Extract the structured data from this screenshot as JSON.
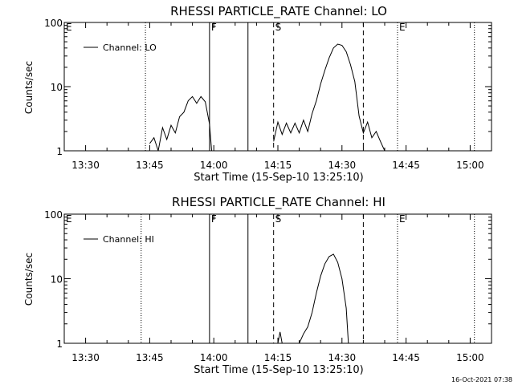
{
  "footer_timestamp": "16-Oct-2021 07:38",
  "chart_data": [
    {
      "type": "line",
      "title": "RHESSI PARTICLE_RATE Channel: LO",
      "xlabel": "Start Time (15-Sep-10 13:25:10)",
      "ylabel": "Counts/sec",
      "x_range": [
        "13:25",
        "15:05"
      ],
      "y_scale": "log",
      "y_range": [
        1,
        100
      ],
      "x_tick_labels": [
        "13:30",
        "13:45",
        "14:00",
        "14:15",
        "14:30",
        "14:45",
        "15:00"
      ],
      "y_tick_labels": [
        "1",
        "10",
        "100"
      ],
      "legend": {
        "label": "Channel: LO",
        "placement": "top-left"
      },
      "markers": [
        {
          "label": "E",
          "time": "13:25",
          "style": "dotted"
        },
        {
          "label": "",
          "time": "13:44",
          "style": "dotted"
        },
        {
          "label": "F",
          "time": "13:59",
          "style": "solid"
        },
        {
          "label": "",
          "time": "14:08",
          "style": "solid"
        },
        {
          "label": "S",
          "time": "14:14",
          "style": "dashed"
        },
        {
          "label": "",
          "time": "14:35",
          "style": "dashed"
        },
        {
          "label": "E",
          "time": "14:43",
          "style": "dotted"
        },
        {
          "label": "",
          "time": "15:01",
          "style": "dotted"
        }
      ],
      "series": [
        {
          "segments": [
            [
              [
                "13:45",
                1.3
              ],
              [
                "13:46",
                1.6
              ],
              [
                "13:47",
                1.0
              ],
              [
                "13:48",
                2.3
              ],
              [
                "13:49",
                1.5
              ],
              [
                "13:50",
                2.5
              ],
              [
                "13:51",
                1.9
              ],
              [
                "13:52",
                3.4
              ],
              [
                "13:53",
                4.0
              ],
              [
                "13:54",
                6.0
              ],
              [
                "13:55",
                7.0
              ],
              [
                "13:56",
                5.5
              ],
              [
                "13:57",
                7.0
              ],
              [
                "13:58",
                5.8
              ],
              [
                "13:59",
                2.6
              ],
              [
                "13:59.5",
                1.0
              ]
            ],
            [
              [
                "14:14",
                1.4
              ],
              [
                "14:15",
                2.8
              ],
              [
                "14:16",
                1.8
              ],
              [
                "14:17",
                2.7
              ],
              [
                "14:18",
                1.9
              ],
              [
                "14:19",
                2.7
              ],
              [
                "14:20",
                1.9
              ],
              [
                "14:21",
                3.0
              ],
              [
                "14:22",
                2.0
              ],
              [
                "14:23",
                3.8
              ],
              [
                "14:24",
                6.0
              ],
              [
                "14:25",
                11
              ],
              [
                "14:26",
                18
              ],
              [
                "14:27",
                28
              ],
              [
                "14:28",
                40
              ],
              [
                "14:29",
                46
              ],
              [
                "14:30",
                44
              ],
              [
                "14:31",
                35
              ],
              [
                "14:32",
                22
              ],
              [
                "14:33",
                12
              ],
              [
                "14:34",
                3.5
              ],
              [
                "14:35",
                1.9
              ],
              [
                "14:36",
                2.8
              ],
              [
                "14:37",
                1.6
              ],
              [
                "14:38",
                2.0
              ],
              [
                "14:39",
                1.4
              ],
              [
                "14:40",
                1.0
              ]
            ]
          ]
        }
      ]
    },
    {
      "type": "line",
      "title": "RHESSI PARTICLE_RATE Channel: HI",
      "xlabel": "Start Time (15-Sep-10 13:25:10)",
      "ylabel": "Counts/sec",
      "x_range": [
        "13:25",
        "15:05"
      ],
      "y_scale": "log",
      "y_range": [
        1,
        100
      ],
      "x_tick_labels": [
        "13:30",
        "13:45",
        "14:00",
        "14:15",
        "14:30",
        "14:45",
        "15:00"
      ],
      "y_tick_labels": [
        "1",
        "10",
        "100"
      ],
      "legend": {
        "label": "Channel: HI",
        "placement": "top-left"
      },
      "markers": [
        {
          "label": "E",
          "time": "13:25",
          "style": "dotted"
        },
        {
          "label": "",
          "time": "13:43",
          "style": "dotted"
        },
        {
          "label": "F",
          "time": "13:59",
          "style": "solid"
        },
        {
          "label": "",
          "time": "14:08",
          "style": "solid"
        },
        {
          "label": "S",
          "time": "14:14",
          "style": "dashed"
        },
        {
          "label": "",
          "time": "14:35",
          "style": "dashed"
        },
        {
          "label": "E",
          "time": "14:43",
          "style": "dotted"
        },
        {
          "label": "",
          "time": "15:01",
          "style": "dotted"
        }
      ],
      "series": [
        {
          "segments": [
            [
              [
                "14:15",
                1.0
              ],
              [
                "14:15.5",
                1.5
              ],
              [
                "14:16",
                1.0
              ]
            ],
            [
              [
                "14:20",
                1.0
              ],
              [
                "14:21",
                1.4
              ],
              [
                "14:22",
                1.8
              ],
              [
                "14:23",
                3.0
              ],
              [
                "14:24",
                6.0
              ],
              [
                "14:25",
                11
              ],
              [
                "14:26",
                17
              ],
              [
                "14:27",
                22
              ],
              [
                "14:28",
                24
              ],
              [
                "14:29",
                18
              ],
              [
                "14:30",
                10
              ],
              [
                "14:31",
                3.5
              ],
              [
                "14:31.5",
                1.0
              ]
            ]
          ]
        }
      ]
    }
  ]
}
